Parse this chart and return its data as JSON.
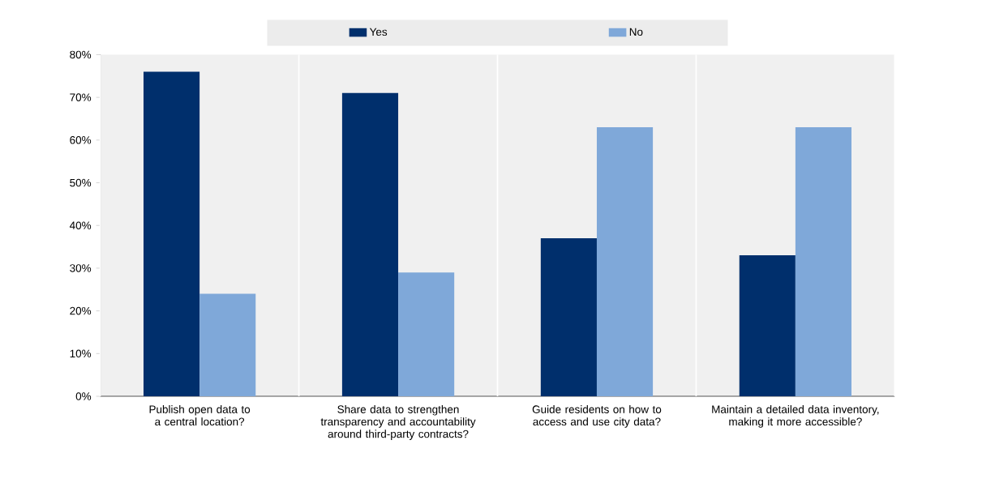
{
  "chart_data": {
    "type": "bar",
    "categories": [
      "Publish open data to a central location?",
      "Share data to strengthen transparency and accountability around third-party contracts?",
      "Guide residents on how to access and use city data?",
      "Maintain a detailed data inventory, making it more accessible?"
    ],
    "series": [
      {
        "name": "Yes",
        "color": "#002f6c",
        "values": [
          76,
          71,
          37,
          33
        ]
      },
      {
        "name": "No",
        "color": "#7fa8d9",
        "values": [
          24,
          29,
          63,
          63
        ]
      }
    ],
    "ylim": [
      0,
      80
    ],
    "yticks": [
      {
        "value": 0,
        "label": "0%"
      },
      {
        "value": 10,
        "label": "10%"
      },
      {
        "value": 20,
        "label": "20%"
      },
      {
        "value": 30,
        "label": "30%"
      },
      {
        "value": 40,
        "label": "40%"
      },
      {
        "value": 50,
        "label": "50%"
      },
      {
        "value": 60,
        "label": "60%"
      },
      {
        "value": 70,
        "label": "70%"
      },
      {
        "value": 80,
        "label": "80%"
      }
    ],
    "grid": "x",
    "legend": "top"
  }
}
